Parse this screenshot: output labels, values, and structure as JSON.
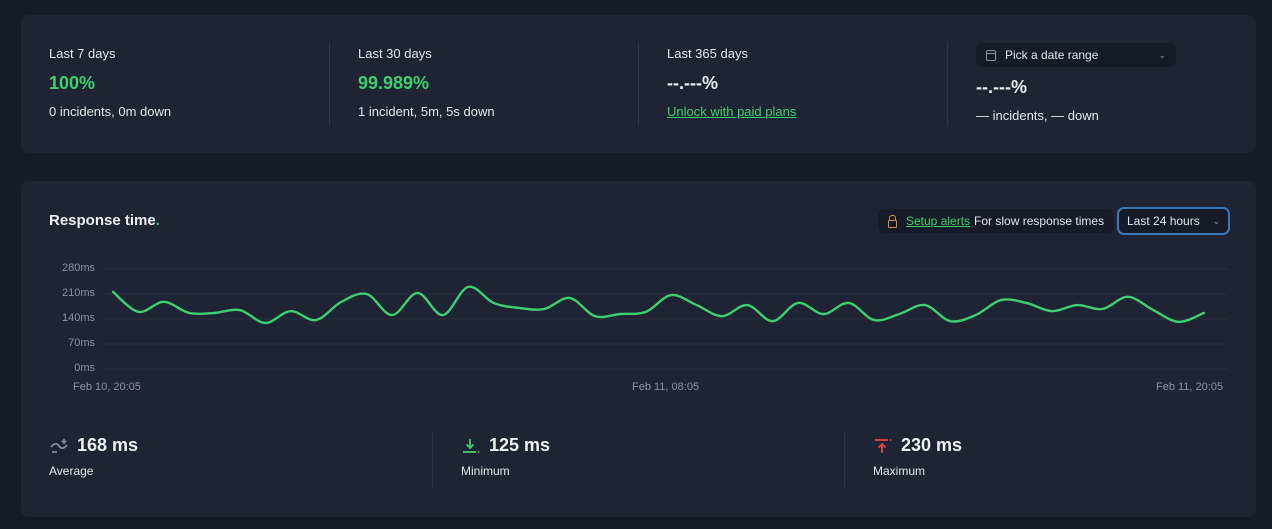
{
  "uptime": {
    "stats": [
      {
        "label": "Last 7 days",
        "value": "100%",
        "sub": "0 incidents, 0m down"
      },
      {
        "label": "Last 30 days",
        "value": "99.989%",
        "sub": "1 incident, 5m, 5s down"
      },
      {
        "label": "Last 365 days",
        "value": "--.---%",
        "sub": "Unlock with paid plans"
      },
      {
        "date_picker": "Pick a date range",
        "value": "--.---%",
        "sub": "— incidents, — down"
      }
    ]
  },
  "response_time": {
    "title": "Response time",
    "title_dot": ".",
    "alert_link": "Setup alerts",
    "alert_text": "For slow response times",
    "range": "Last 24 hours",
    "metrics": [
      {
        "value": "168 ms",
        "label": "Average",
        "icon": "average-wave-icon"
      },
      {
        "value": "125 ms",
        "label": "Minimum",
        "icon": "arrow-down-to-line-icon"
      },
      {
        "value": "230 ms",
        "label": "Maximum",
        "icon": "arrow-up-to-line-icon"
      }
    ]
  },
  "colors": {
    "accent": "#3cd070",
    "background": "#151b27",
    "card": "#1e2433",
    "focus": "#3a78b5",
    "max_icon": "#e0454a",
    "lock": "#d98a3a"
  },
  "chart_data": {
    "type": "line",
    "title": "Response time",
    "xlabel": "",
    "ylabel": "",
    "ylim": [
      0,
      280
    ],
    "y_ticks": [
      "0ms",
      "70ms",
      "140ms",
      "210ms",
      "280ms"
    ],
    "x_ticks": [
      "Feb 10, 20:05",
      "Feb 11, 08:05",
      "Feb 11, 20:05"
    ],
    "grid": true,
    "series": [
      {
        "name": "Response time (ms)",
        "color": "#3cd070",
        "values": [
          216,
          160,
          188,
          157,
          157,
          165,
          129,
          162,
          137,
          188,
          210,
          151,
          213,
          151,
          230,
          185,
          171,
          168,
          199,
          148,
          154,
          160,
          207,
          179,
          148,
          179,
          134,
          185,
          154,
          185,
          137,
          154,
          179,
          134,
          151,
          193,
          185,
          162,
          179,
          168,
          202,
          165,
          132,
          157
        ]
      }
    ]
  }
}
